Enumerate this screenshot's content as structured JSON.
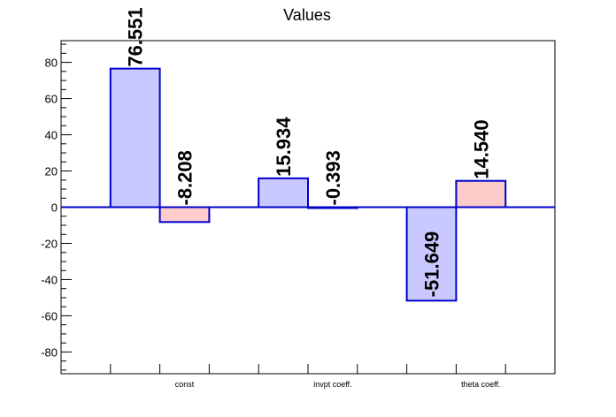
{
  "chart_data": {
    "type": "bar",
    "title": "Values",
    "xlabel": "",
    "ylabel": "",
    "ylim": [
      -92,
      92
    ],
    "yticks": [
      -80,
      -60,
      -40,
      -20,
      0,
      20,
      40,
      60,
      80
    ],
    "categories": [
      "const",
      "invpt coeff.",
      "theta coeff."
    ],
    "series": [
      {
        "values": [
          76.551,
          15.934,
          -51.649
        ],
        "labels": [
          "76.551",
          "15.934",
          "-51.649"
        ]
      },
      {
        "values": [
          -8.208,
          -0.393,
          14.54
        ],
        "labels": [
          "-8.208",
          "-0.393",
          "14.540"
        ]
      }
    ],
    "grid": false,
    "colors": {
      "series_fill": [
        "#c9c9ff",
        "#ffcccc"
      ],
      "series_stroke": "#0000cc",
      "zero_line": "#0000cc"
    }
  }
}
